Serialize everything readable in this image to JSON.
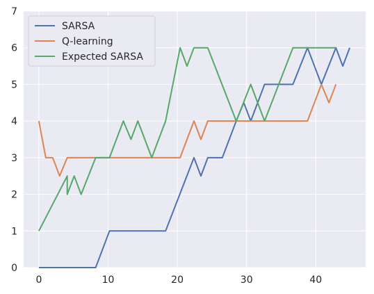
{
  "chart_data": {
    "type": "line",
    "title": "",
    "xlabel": "",
    "ylabel": "",
    "xlim": [
      -2.2,
      47.2
    ],
    "ylim": [
      0,
      7
    ],
    "xticks": [
      0,
      10,
      20,
      30,
      40
    ],
    "yticks": [
      0,
      1,
      2,
      3,
      4,
      5,
      6,
      7
    ],
    "grid": true,
    "legend": "top-left",
    "series": [
      {
        "name": "SARSA",
        "color": "#4c72b0",
        "points": [
          [
            0,
            0
          ],
          [
            8.2,
            0
          ],
          [
            10.2,
            1
          ],
          [
            18.3,
            1
          ],
          [
            22.4,
            3
          ],
          [
            23.4,
            2.5
          ],
          [
            24.4,
            3
          ],
          [
            26.5,
            3
          ],
          [
            28.5,
            4
          ],
          [
            29.6,
            4.5
          ],
          [
            30.6,
            4
          ],
          [
            32.6,
            5
          ],
          [
            36.7,
            5
          ],
          [
            38.8,
            6
          ],
          [
            40.8,
            5
          ],
          [
            42.9,
            6
          ],
          [
            43.9,
            5.5
          ],
          [
            44.9,
            6
          ]
        ]
      },
      {
        "name": "Q-learning",
        "color": "#dd8452",
        "points": [
          [
            0,
            4
          ],
          [
            1,
            3
          ],
          [
            2,
            3
          ],
          [
            3,
            2.5
          ],
          [
            4.1,
            3
          ],
          [
            20.4,
            3
          ],
          [
            22.4,
            4
          ],
          [
            23.4,
            3.5
          ],
          [
            24.4,
            4
          ],
          [
            38.8,
            4
          ],
          [
            40.8,
            5
          ],
          [
            41.9,
            4.5
          ],
          [
            42.9,
            5
          ]
        ]
      },
      {
        "name": "Expected SARSA",
        "color": "#55a868",
        "points": [
          [
            0,
            1
          ],
          [
            4.1,
            2.5
          ],
          [
            4.1,
            2
          ],
          [
            5.1,
            2.5
          ],
          [
            6.1,
            2
          ],
          [
            8.2,
            3
          ],
          [
            10.2,
            3
          ],
          [
            12.2,
            4
          ],
          [
            13.3,
            3.5
          ],
          [
            14.3,
            4
          ],
          [
            16.3,
            3
          ],
          [
            18.3,
            4
          ],
          [
            20.4,
            6
          ],
          [
            21.4,
            5.5
          ],
          [
            22.4,
            6
          ],
          [
            24.4,
            6
          ],
          [
            28.5,
            4
          ],
          [
            30.6,
            5
          ],
          [
            32.6,
            4
          ],
          [
            36.7,
            6
          ],
          [
            42.9,
            6
          ]
        ]
      }
    ]
  }
}
